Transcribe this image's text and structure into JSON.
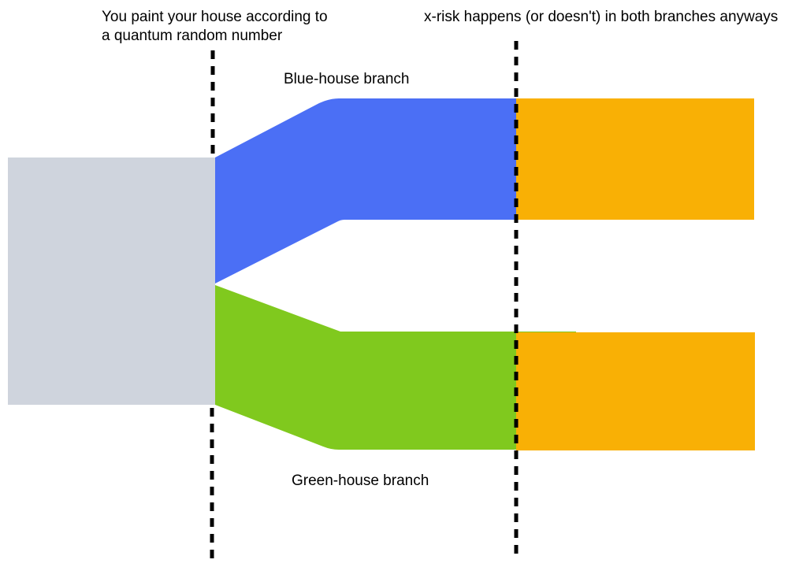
{
  "labels": {
    "branch_event_line1": "You paint your house according to",
    "branch_event_line2": "a quantum random number",
    "xrisk_event": "x-risk happens (or doesn't) in both branches anyways",
    "blue_branch": "Blue-house branch",
    "green_branch": "Green-house branch"
  },
  "colors": {
    "origin": "#cfd4dd",
    "blue_branch": "#4b6ff5",
    "green_branch": "#80c91e",
    "xrisk": "#f9b005",
    "divider": "#000000"
  }
}
